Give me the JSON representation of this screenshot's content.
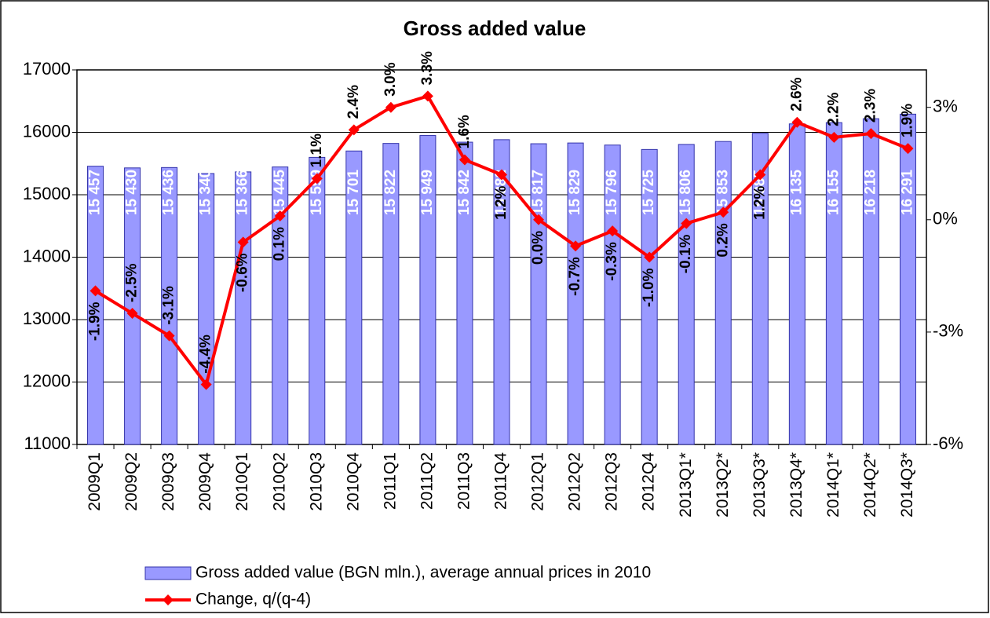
{
  "chart_data": {
    "type": "bar-line",
    "title": "Gross added value",
    "categories": [
      "2009Q1",
      "2009Q2",
      "2009Q3",
      "2009Q4",
      "2010Q1",
      "2010Q2",
      "2010Q3",
      "2010Q4",
      "2011Q1",
      "2011Q2",
      "2011Q3",
      "2011Q4",
      "2012Q1",
      "2012Q2",
      "2012Q3",
      "2012Q4",
      "2013Q1*",
      "2013Q2*",
      "2013Q3*",
      "2013Q4*",
      "2014Q1*",
      "2014Q2*",
      "2014Q3*"
    ],
    "series": [
      {
        "name": "Gross added value (BGN mln.), average annual prices in 2010",
        "type": "bar",
        "color": "#9999ff",
        "values": [
          15457,
          15430,
          15436,
          15340,
          15366,
          15445,
          15599,
          15701,
          15822,
          15949,
          15842,
          15882,
          15817,
          15829,
          15796,
          15725,
          15806,
          15853,
          15985,
          16135,
          16155,
          16218,
          16291
        ],
        "value_labels": [
          "15 457",
          "15 430",
          "15 436",
          "15 340",
          "15 366",
          "15 445",
          "15 599",
          "15 701",
          "15 822",
          "15 949",
          "15 842",
          "15 882",
          "15 817",
          "15 829",
          "15 796",
          "15 725",
          "15 806",
          "15 853",
          "15 985",
          "16 135",
          "16 155",
          "16 218",
          "16 291"
        ]
      },
      {
        "name": "Change, q/(q-4)",
        "type": "line",
        "axis": "y2",
        "color": "#ff0000",
        "values": [
          -1.9,
          -2.5,
          -3.1,
          -4.4,
          -0.6,
          0.1,
          1.1,
          2.4,
          3.0,
          3.3,
          1.6,
          1.2,
          0.0,
          -0.7,
          -0.3,
          -1.0,
          -0.1,
          0.2,
          1.2,
          2.6,
          2.2,
          2.3,
          1.9
        ],
        "value_labels": [
          "-1.9%",
          "-2.5%",
          "-3.1%",
          "-4.4%",
          "-0.6%",
          "0.1%",
          "1.1%",
          "2.4%",
          "3.0%",
          "3.3%",
          "1.6%",
          "1.2%",
          "0.0%",
          "-0.7%",
          "-0.3%",
          "-1.0%",
          "-0.1%",
          "0.2%",
          "1.2%",
          "2.6%",
          "2.2%",
          "2.3%",
          "1.9%"
        ]
      }
    ],
    "ylim": [
      11000,
      17000
    ],
    "yticks": [
      11000,
      12000,
      13000,
      14000,
      15000,
      16000,
      17000
    ],
    "y2lim": [
      -6,
      4
    ],
    "y2ticks": [
      {
        "value": -6,
        "label": "-6%"
      },
      {
        "value": -3,
        "label": "-3%"
      },
      {
        "value": 0,
        "label": "0%"
      },
      {
        "value": 3,
        "label": "3%"
      }
    ],
    "grid": true,
    "legend": "bottom-left"
  }
}
